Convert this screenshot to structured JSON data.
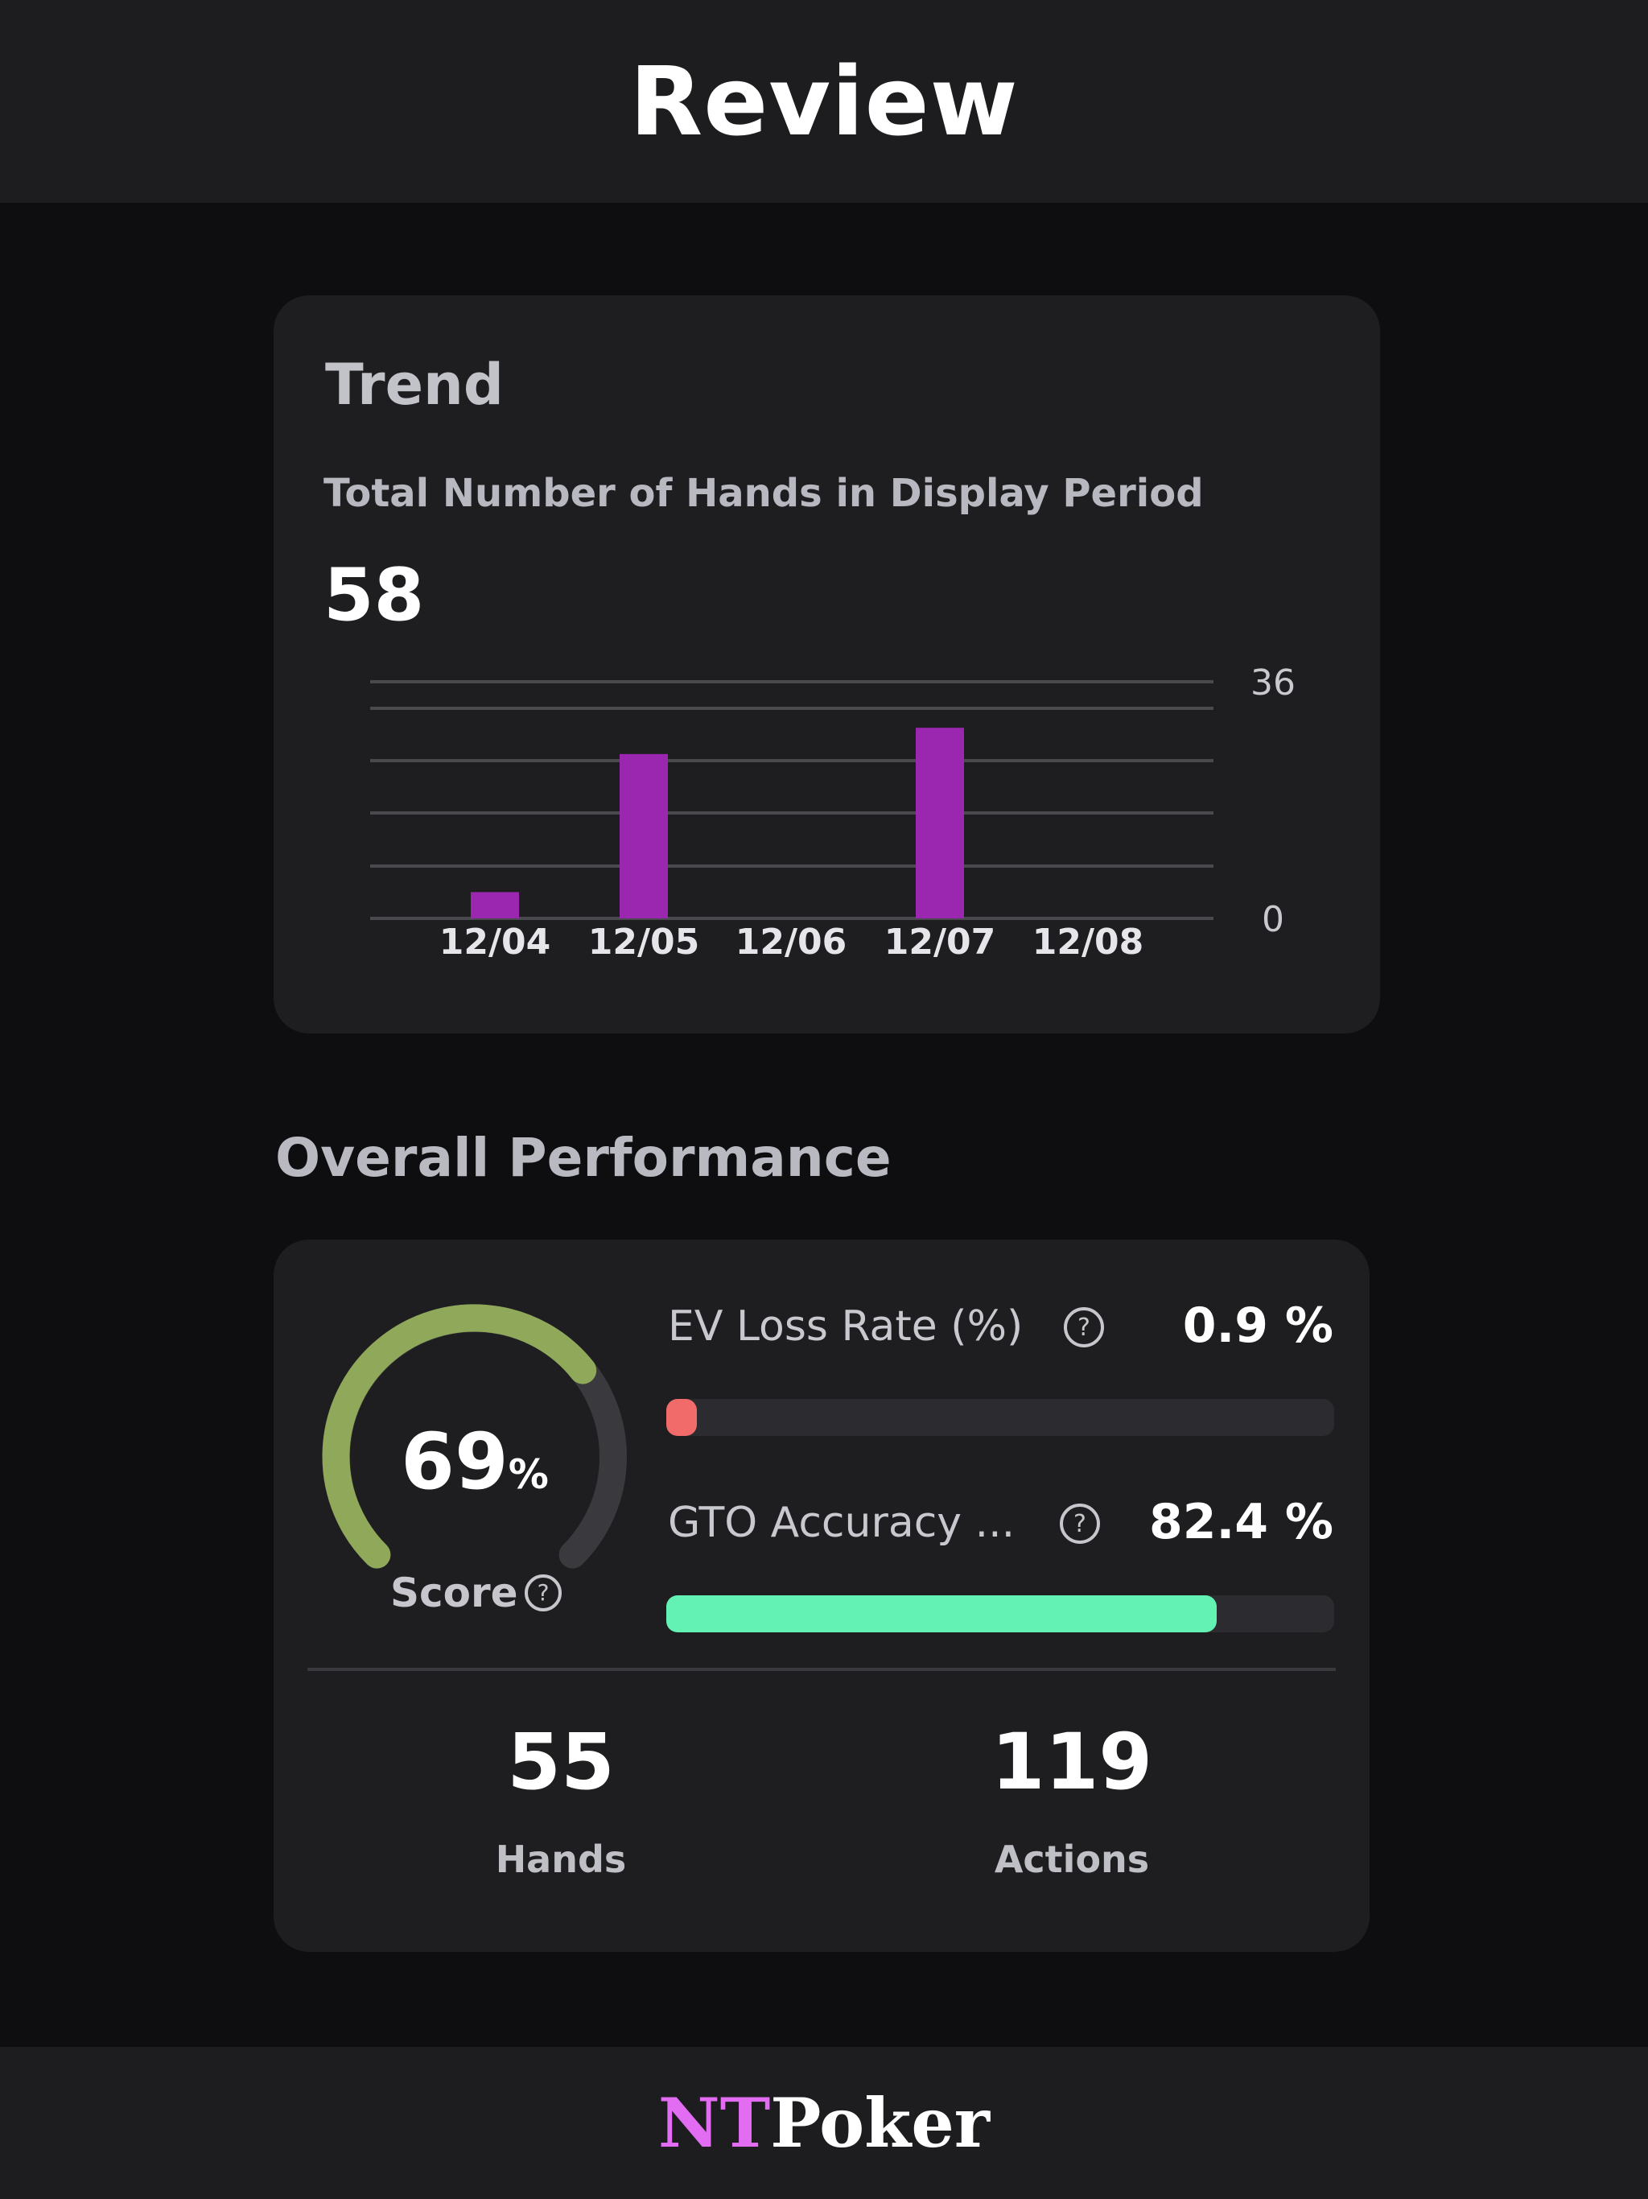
{
  "header": {
    "title": "Review"
  },
  "trend": {
    "title": "Trend",
    "subtitle": "Total Number of Hands in Display Period",
    "total": "58",
    "colors": {
      "bar": "#9b27b0",
      "grid": "#4a4a4e"
    }
  },
  "chart_data": {
    "type": "bar",
    "categories": [
      "12/04",
      "12/05",
      "12/06",
      "12/07",
      "12/08"
    ],
    "values": [
      4,
      25,
      0,
      29,
      0
    ],
    "ylim": [
      0,
      36
    ],
    "ytick_labels": [
      "36",
      "0"
    ],
    "grid": true,
    "y_axis_position": "right"
  },
  "performance": {
    "section_title": "Overall Performance",
    "score": {
      "value": "69",
      "unit": "%",
      "label": "Score",
      "fraction": 0.69,
      "color": "#8fa85a",
      "track_color": "#3a3a3e"
    },
    "ev_loss": {
      "label": "EV Loss Rate (%)",
      "value": "0.9 %",
      "fraction": 0.009,
      "color": "#f26b6b"
    },
    "gto_accuracy": {
      "label": "GTO Accuracy ...",
      "value": "82.4 %",
      "fraction": 0.824,
      "color": "#63f2b4"
    },
    "stats": [
      {
        "value": "55",
        "label": "Hands"
      },
      {
        "value": "119",
        "label": "Actions"
      }
    ]
  },
  "footer": {
    "logo_nt": "NT",
    "logo_poker": "Poker"
  }
}
